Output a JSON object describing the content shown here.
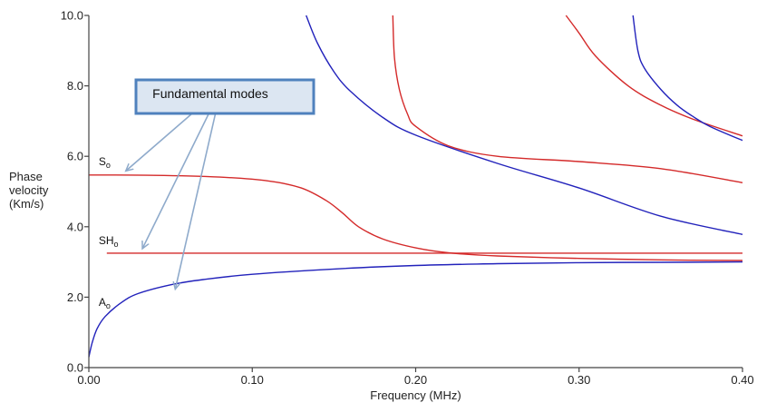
{
  "chart_data": {
    "type": "line",
    "title": "",
    "xlabel": "Frequency (MHz)",
    "ylabel_lines": [
      "Phase",
      "velocity",
      "(Km/s)"
    ],
    "xlim": [
      0,
      0.4
    ],
    "ylim": [
      0,
      10
    ],
    "x_ticks": [
      {
        "value": 0,
        "label": "0.00"
      },
      {
        "value": 0.1,
        "label": "0.10"
      },
      {
        "value": 0.2,
        "label": "0.20"
      },
      {
        "value": 0.3,
        "label": "0.30"
      },
      {
        "value": 0.4,
        "label": "0.40"
      }
    ],
    "y_ticks": [
      {
        "value": 0,
        "label": "0.0"
      },
      {
        "value": 2,
        "label": "2.0"
      },
      {
        "value": 4,
        "label": "4.0"
      },
      {
        "value": 6,
        "label": "6.0"
      },
      {
        "value": 8,
        "label": "8.0"
      },
      {
        "value": 10,
        "label": "10.0"
      }
    ],
    "grid": false,
    "series": [
      {
        "color": "#d42a2a",
        "points": [
          [
            0,
            5.47
          ],
          [
            0.04,
            5.46
          ],
          [
            0.08,
            5.41
          ],
          [
            0.11,
            5.3
          ],
          [
            0.13,
            5.1
          ],
          [
            0.145,
            4.75
          ],
          [
            0.155,
            4.4
          ],
          [
            0.165,
            4.0
          ],
          [
            0.18,
            3.65
          ],
          [
            0.2,
            3.4
          ],
          [
            0.22,
            3.26
          ],
          [
            0.25,
            3.17
          ],
          [
            0.3,
            3.1
          ],
          [
            0.35,
            3.06
          ],
          [
            0.4,
            3.04
          ]
        ]
      },
      {
        "color": "#d42a2a",
        "points": [
          [
            0.011,
            3.25
          ],
          [
            0.4,
            3.25
          ]
        ]
      },
      {
        "color": "#2222bb",
        "points": [
          [
            0,
            0.3
          ],
          [
            0.002,
            0.7
          ],
          [
            0.005,
            1.1
          ],
          [
            0.01,
            1.45
          ],
          [
            0.02,
            1.85
          ],
          [
            0.03,
            2.1
          ],
          [
            0.05,
            2.35
          ],
          [
            0.07,
            2.5
          ],
          [
            0.1,
            2.65
          ],
          [
            0.15,
            2.8
          ],
          [
            0.2,
            2.9
          ],
          [
            0.25,
            2.95
          ],
          [
            0.3,
            2.98
          ],
          [
            0.35,
            2.99
          ],
          [
            0.4,
            3.0
          ]
        ]
      },
      {
        "color": "#2222bb",
        "points": [
          [
            0.133,
            10.0
          ],
          [
            0.14,
            9.2
          ],
          [
            0.15,
            8.4
          ],
          [
            0.16,
            7.85
          ],
          [
            0.18,
            7.1
          ],
          [
            0.2,
            6.6
          ],
          [
            0.25,
            5.8
          ],
          [
            0.3,
            5.1
          ],
          [
            0.35,
            4.3
          ],
          [
            0.4,
            3.78
          ]
        ]
      },
      {
        "color": "#d42a2a",
        "points": [
          [
            0.186,
            10.0
          ],
          [
            0.187,
            8.8
          ],
          [
            0.19,
            7.9
          ],
          [
            0.195,
            7.2
          ],
          [
            0.2,
            6.85
          ],
          [
            0.22,
            6.3
          ],
          [
            0.25,
            6.0
          ],
          [
            0.3,
            5.85
          ],
          [
            0.35,
            5.65
          ],
          [
            0.4,
            5.25
          ]
        ]
      },
      {
        "color": "#d42a2a",
        "points": [
          [
            0.292,
            10.0
          ],
          [
            0.3,
            9.5
          ],
          [
            0.31,
            8.85
          ],
          [
            0.33,
            8.0
          ],
          [
            0.35,
            7.45
          ],
          [
            0.37,
            7.05
          ],
          [
            0.4,
            6.58
          ]
        ]
      },
      {
        "color": "#2222bb",
        "points": [
          [
            0.333,
            10.0
          ],
          [
            0.336,
            9.0
          ],
          [
            0.34,
            8.5
          ],
          [
            0.35,
            7.9
          ],
          [
            0.36,
            7.45
          ],
          [
            0.37,
            7.12
          ],
          [
            0.38,
            6.85
          ],
          [
            0.4,
            6.45
          ]
        ]
      }
    ],
    "annotations": [
      {
        "text": "S",
        "sub": "o",
        "x": 0.006,
        "y": 5.75
      },
      {
        "text": "SH",
        "sub": "o",
        "x": 0.006,
        "y": 3.5
      },
      {
        "text": "A",
        "sub": "o",
        "x": 0.006,
        "y": 1.75
      }
    ],
    "callout": {
      "text": "Fundamental modes",
      "fill": "#dce6f2",
      "border": "#4f81bd",
      "arrow_color": "#8eaacb",
      "anchor": [
        0.081,
        7.93
      ],
      "targets": [
        [
          0.023,
          5.6
        ],
        [
          0.033,
          3.4
        ],
        [
          0.053,
          2.25
        ]
      ]
    }
  }
}
